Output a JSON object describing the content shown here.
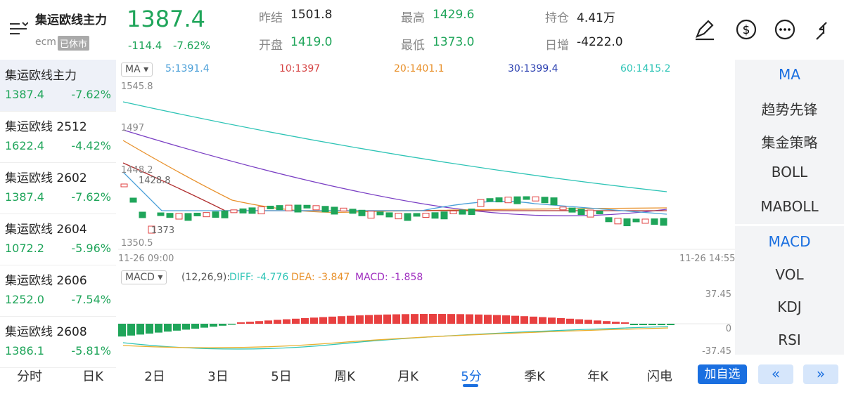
{
  "header": {
    "name": "集运欧线主力",
    "code": "ecm",
    "status": "已休市",
    "price": "1387.4",
    "change": "-114.4",
    "change_pct": "-7.62%"
  },
  "stats": [
    {
      "label": "昨结",
      "value": "1501.8"
    },
    {
      "label": "开盘",
      "value": "1419.0"
    },
    {
      "label": "最高",
      "value": "1429.6"
    },
    {
      "label": "最低",
      "value": "1373.0"
    },
    {
      "label": "持仓",
      "value": "4.41万"
    },
    {
      "label": "日增",
      "value": "-4222.0"
    }
  ],
  "watchlist": [
    {
      "name": "集运欧线主力",
      "price": "1387.4",
      "pct": "-7.62%"
    },
    {
      "name": "集运欧线 2512",
      "price": "1622.4",
      "pct": "-4.42%"
    },
    {
      "name": "集运欧线 2602",
      "price": "1387.4",
      "pct": "-7.62%"
    },
    {
      "name": "集运欧线 2604",
      "price": "1072.2",
      "pct": "-5.96%"
    },
    {
      "name": "集运欧线 2606",
      "price": "1252.0",
      "pct": "-7.54%"
    },
    {
      "name": "集运欧线 2608",
      "price": "1386.1",
      "pct": "-5.81%"
    }
  ],
  "main_chart": {
    "indicator": "MA",
    "legend": [
      "5:1391.4",
      "10:1397",
      "20:1401.1",
      "30:1399.4",
      "60:1415.2"
    ],
    "price_labels": [
      "1545.8",
      "1497",
      "1448.2",
      "1350.5"
    ],
    "annotations": [
      "1428.8",
      "1373"
    ],
    "time_start": "11-26 09:00",
    "time_end": "11-26 14:55"
  },
  "sub_chart": {
    "indicator": "MACD",
    "params": "(12,26,9):",
    "legend": [
      "DIFF: -4.776",
      "DEA: -3.847",
      "MACD: -1.858"
    ],
    "axis_labels": [
      "37.45",
      "0",
      "-37.45"
    ]
  },
  "side_menu": [
    "MA",
    "趋势先锋",
    "集金策略",
    "BOLL",
    "MABOLL",
    "MACD",
    "VOL",
    "KDJ",
    "RSI"
  ],
  "tabs": [
    "分时",
    "日K",
    "2日",
    "3日",
    "5日",
    "周K",
    "月K",
    "5分",
    "季K",
    "年K",
    "闪电"
  ],
  "add_button": "加自选"
}
